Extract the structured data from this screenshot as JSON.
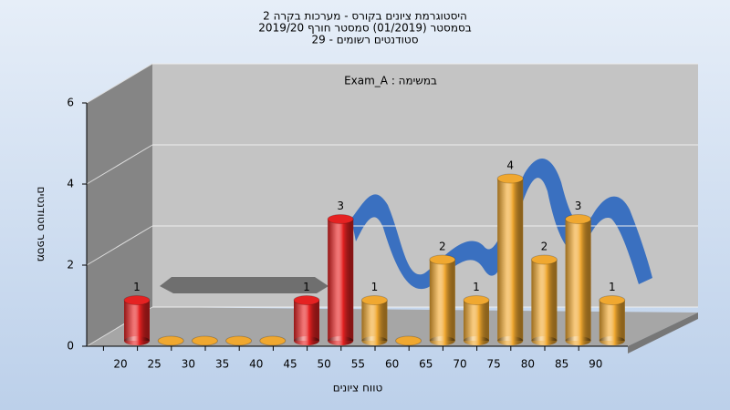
{
  "chart_data": {
    "type": "bar",
    "title": [
      "היסטוגרמת ציונים בקורס - מערכות בקרה 2",
      "בסמסטר  (01/2019)  סמסטר חורף 2019/20",
      "סטודנטים רשומים - 29"
    ],
    "subtitle": "במשימה : Exam_A",
    "xlabel": "טווח ציונים",
    "ylabel": "מספר סטודנטים",
    "categories": [
      "20",
      "25",
      "30",
      "35",
      "40",
      "45",
      "50",
      "55",
      "60",
      "65",
      "70",
      "75",
      "80",
      "85",
      "90"
    ],
    "values": [
      1,
      0,
      0,
      0,
      0,
      1,
      3,
      1,
      0,
      2,
      1,
      4,
      2,
      3,
      1
    ],
    "colors": [
      "#e52222",
      "#f0a830",
      "#f0a830",
      "#f0a830",
      "#f0a830",
      "#e52222",
      "#e52222",
      "#f0a830",
      "#f0a830",
      "#f0a830",
      "#f0a830",
      "#f0a830",
      "#f0a830",
      "#f0a830",
      "#f0a830"
    ],
    "ylim": [
      0,
      6
    ],
    "yticks": [
      0,
      2,
      4,
      6
    ],
    "grid": true
  }
}
